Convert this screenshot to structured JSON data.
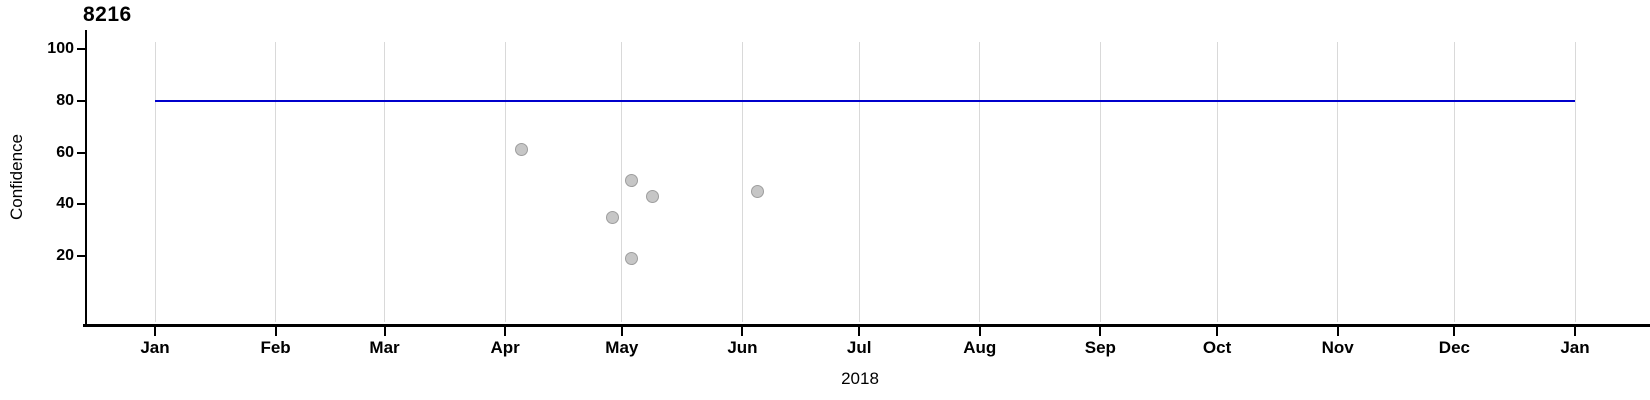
{
  "title": "8216",
  "y_axis": {
    "label": "Confidence",
    "ticks": [
      {
        "label": "100",
        "value": 100
      },
      {
        "label": "80",
        "value": 80
      },
      {
        "label": "60",
        "value": 60
      },
      {
        "label": "40",
        "value": 40
      },
      {
        "label": "20",
        "value": 20
      }
    ]
  },
  "x_axis": {
    "label": "2018",
    "ticks": [
      {
        "label": "Jan",
        "day": 0
      },
      {
        "label": "Feb",
        "day": 31
      },
      {
        "label": "Mar",
        "day": 59
      },
      {
        "label": "Apr",
        "day": 90
      },
      {
        "label": "May",
        "day": 120
      },
      {
        "label": "Jun",
        "day": 151
      },
      {
        "label": "Jul",
        "day": 181
      },
      {
        "label": "Aug",
        "day": 212
      },
      {
        "label": "Sep",
        "day": 243
      },
      {
        "label": "Oct",
        "day": 273
      },
      {
        "label": "Nov",
        "day": 304
      },
      {
        "label": "Dec",
        "day": 334
      },
      {
        "label": "Jan",
        "day": 365
      }
    ]
  },
  "chart_data": {
    "type": "scatter",
    "title": "8216",
    "xlabel": "2018",
    "ylabel": "Confidence",
    "x_range": "Jan 2018 to Jan 2019",
    "ylim": [
      0,
      100
    ],
    "y_ticks": [
      20,
      40,
      60,
      80,
      100
    ],
    "grid": "vertical month gridlines only",
    "legend": "none",
    "threshold_line": {
      "value": 80,
      "color": "#0000cc"
    },
    "points": [
      {
        "date": "2018-04-05",
        "day_of_year": 94.3,
        "confidence": 61
      },
      {
        "date": "2018-04-28",
        "day_of_year": 117.5,
        "confidence": 35
      },
      {
        "date": "2018-05-03",
        "day_of_year": 122.4,
        "confidence": 19
      },
      {
        "date": "2018-05-03",
        "day_of_year": 122.6,
        "confidence": 49
      },
      {
        "date": "2018-05-08",
        "day_of_year": 127.8,
        "confidence": 43
      },
      {
        "date": "2018-06-04",
        "day_of_year": 154.8,
        "confidence": 45
      }
    ],
    "point_color": "#c6c6c6",
    "point_border_color": "#9e9e9e"
  },
  "colors": {
    "background": "#ffffff",
    "gridline": "#d9d9d9",
    "axis": "#000000",
    "threshold": "#0000cc"
  }
}
